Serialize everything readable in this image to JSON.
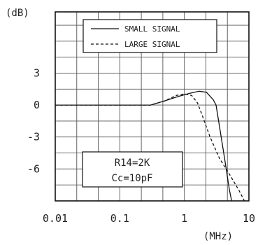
{
  "chart_data": {
    "type": "line",
    "title": "",
    "xlabel": "(MHz)",
    "ylabel": "(dB)",
    "xscale": "log",
    "xlim": [
      0.01,
      10
    ],
    "ylim": [
      -9,
      8.75
    ],
    "x_ticks": [
      {
        "value": 0.01,
        "label": "0.01"
      },
      {
        "value": 0.1,
        "label": "0.1"
      },
      {
        "value": 1,
        "label": "1"
      },
      {
        "value": 10,
        "label": "10"
      }
    ],
    "y_ticks": [
      {
        "value": 3,
        "label": "3"
      },
      {
        "value": 0,
        "label": "0"
      },
      {
        "value": -3,
        "label": "-3"
      },
      {
        "value": -6,
        "label": "-6"
      }
    ],
    "grid": true,
    "legend_position": "top-right",
    "series": [
      {
        "name": "SMALL SIGNAL",
        "style": "solid",
        "points": [
          [
            0.01,
            0
          ],
          [
            0.3,
            0
          ],
          [
            0.5,
            0.4
          ],
          [
            0.8,
            0.8
          ],
          [
            1.2,
            1.1
          ],
          [
            1.7,
            1.3
          ],
          [
            2.2,
            1.2
          ],
          [
            2.8,
            0.5
          ],
          [
            3.1,
            0
          ],
          [
            3.5,
            -2
          ],
          [
            4.2,
            -5
          ],
          [
            5,
            -8
          ],
          [
            5.4,
            -9
          ]
        ]
      },
      {
        "name": "LARGE SIGNAL",
        "style": "dashed",
        "points": [
          [
            0.01,
            0
          ],
          [
            0.3,
            0
          ],
          [
            0.5,
            0.4
          ],
          [
            0.75,
            0.9
          ],
          [
            1.0,
            1.05
          ],
          [
            1.3,
            0.9
          ],
          [
            1.6,
            0.2
          ],
          [
            1.9,
            -1
          ],
          [
            2.5,
            -3
          ],
          [
            3.5,
            -5
          ],
          [
            5,
            -6.5
          ],
          [
            7,
            -8
          ],
          [
            8.5,
            -9
          ]
        ]
      }
    ],
    "annotation": {
      "lines": [
        "R14=2K",
        "Cc=10pF"
      ]
    }
  }
}
